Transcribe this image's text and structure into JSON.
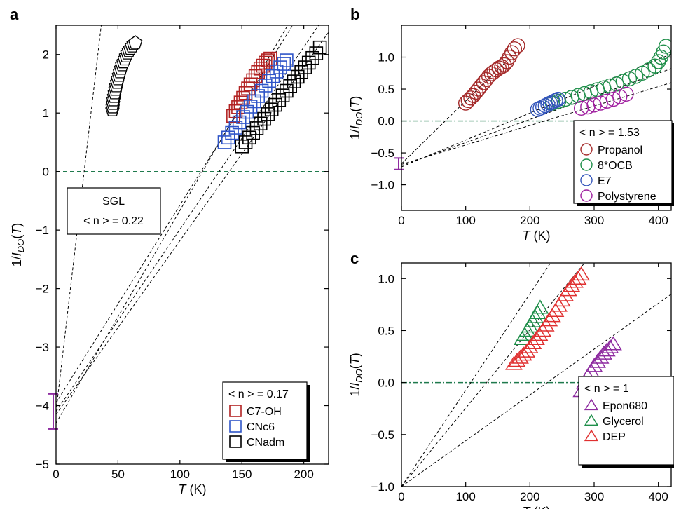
{
  "chart_data": [
    {
      "panel": "a",
      "type": "scatter",
      "xlabel": "T (K)",
      "ylabel": "1/I_DO(T)",
      "xlim": [
        0,
        220
      ],
      "ylim": [
        -5,
        2.5
      ],
      "xticks": [
        "0",
        "50",
        "100",
        "150",
        "200"
      ],
      "yticks": [
        "−5",
        "−4",
        "−3",
        "−2",
        "−1",
        "0",
        "1",
        "2"
      ],
      "grid": false,
      "zero_line": "dashed green at y = 0",
      "legend": {
        "title": "< n > = 0.17",
        "placement": "bottom-right"
      },
      "annotation": {
        "line1": "SGL",
        "line2": "< n > = 0.22"
      },
      "intercept_errorbar": {
        "x": 0,
        "low": -4.4,
        "high": -3.8
      },
      "series": [
        {
          "name": "SGL",
          "marker": "pentagon",
          "color": "#000000",
          "x": [
            45.5,
            45.7,
            46,
            46.4,
            46.9,
            47.4,
            48,
            48.6,
            49.3,
            50,
            50.8,
            51.6,
            52.5,
            53.4,
            54.4,
            55.4,
            56.5,
            57.6,
            58.8,
            60,
            61.3,
            62.6,
            64
          ],
          "y": [
            1.05,
            1.1,
            1.16,
            1.22,
            1.28,
            1.34,
            1.4,
            1.46,
            1.52,
            1.58,
            1.64,
            1.7,
            1.76,
            1.82,
            1.87,
            1.92,
            1.97,
            2.02,
            2.06,
            2.1,
            2.14,
            2.18,
            2.2
          ]
        },
        {
          "name": "C7-OH",
          "marker": "square",
          "color": "#b22222",
          "x": [
            143,
            145,
            147,
            149,
            151,
            153,
            155,
            157,
            159,
            161,
            163,
            165,
            167,
            169,
            171,
            173
          ],
          "y": [
            0.95,
            1.03,
            1.1,
            1.18,
            1.26,
            1.34,
            1.42,
            1.49,
            1.56,
            1.63,
            1.7,
            1.76,
            1.81,
            1.86,
            1.9,
            1.93
          ]
        },
        {
          "name": "CNc6",
          "marker": "square",
          "color": "#2f55c8",
          "x": [
            136,
            139,
            142,
            145,
            148,
            151,
            154,
            157,
            160,
            163,
            166,
            169,
            172,
            175,
            178,
            181,
            184,
            186
          ],
          "y": [
            0.5,
            0.58,
            0.66,
            0.75,
            0.84,
            0.93,
            1.02,
            1.11,
            1.2,
            1.29,
            1.38,
            1.47,
            1.55,
            1.63,
            1.71,
            1.78,
            1.84,
            1.9
          ]
        },
        {
          "name": "CNadm",
          "marker": "square",
          "color": "#000000",
          "x": [
            150,
            153,
            156,
            159,
            162,
            165,
            168,
            171,
            174,
            177,
            180,
            183,
            186,
            189,
            192,
            195,
            198,
            201,
            204,
            207,
            210,
            213
          ],
          "y": [
            0.43,
            0.5,
            0.58,
            0.66,
            0.74,
            0.82,
            0.9,
            0.98,
            1.06,
            1.14,
            1.22,
            1.3,
            1.38,
            1.46,
            1.54,
            1.62,
            1.7,
            1.78,
            1.86,
            1.94,
            2.02,
            2.12
          ]
        }
      ],
      "fit_lines": [
        {
          "x0": 0,
          "y0": -4.1,
          "x1": 36.5,
          "y1": 2.5
        },
        {
          "x0": 0,
          "y0": -4.3,
          "x1": 187,
          "y1": 2.5
        },
        {
          "x0": 0,
          "y0": -3.95,
          "x1": 191,
          "y1": 2.5
        },
        {
          "x0": 0,
          "y0": -4.1,
          "x1": 212,
          "y1": 2.5
        },
        {
          "x0": 0,
          "y0": -4.15,
          "x1": 224,
          "y1": 2.5
        }
      ]
    },
    {
      "panel": "b",
      "type": "scatter",
      "xlabel": "T (K)",
      "ylabel": "1/I_DO(T)",
      "xlim": [
        0,
        420
      ],
      "ylim": [
        -1.4,
        1.5
      ],
      "xticks": [
        "0",
        "100",
        "200",
        "300",
        "400"
      ],
      "yticks": [
        "−1.0",
        "−0.5",
        "0.0",
        "0.5",
        "1.0"
      ],
      "grid": false,
      "zero_line": "dash-dot green at y = 0",
      "legend": {
        "title": "< n > = 1.53",
        "placement": "bottom-right"
      },
      "intercept_errorbar": {
        "x": 0,
        "low": -0.76,
        "high": -0.58
      },
      "series": [
        {
          "name": "Propanol",
          "marker": "circle",
          "color": "#a52a2a",
          "x": [
            100,
            104,
            108,
            112,
            116,
            120,
            124,
            128,
            132,
            136,
            140,
            144,
            148,
            152,
            156,
            160,
            164,
            168,
            172,
            176,
            181
          ],
          "y": [
            0.28,
            0.32,
            0.36,
            0.4,
            0.45,
            0.5,
            0.55,
            0.6,
            0.65,
            0.7,
            0.74,
            0.77,
            0.8,
            0.83,
            0.85,
            0.88,
            0.93,
            1.0,
            1.07,
            1.13,
            1.18
          ]
        },
        {
          "name": "8*OCB",
          "marker": "circle",
          "color": "#1f8f4a",
          "x": [
            235,
            245,
            255,
            265,
            275,
            285,
            295,
            305,
            315,
            325,
            335,
            345,
            355,
            365,
            375,
            385,
            395,
            400,
            404,
            408,
            412
          ],
          "y": [
            0.28,
            0.31,
            0.34,
            0.37,
            0.4,
            0.43,
            0.46,
            0.49,
            0.52,
            0.55,
            0.58,
            0.62,
            0.66,
            0.7,
            0.75,
            0.8,
            0.86,
            0.93,
            1.0,
            1.08,
            1.17
          ]
        },
        {
          "name": "E7",
          "marker": "circle",
          "color": "#3355bb",
          "x": [
            212,
            216,
            220,
            224,
            228,
            232,
            236,
            240,
            244
          ],
          "y": [
            0.18,
            0.2,
            0.22,
            0.24,
            0.26,
            0.28,
            0.3,
            0.32,
            0.34
          ]
        },
        {
          "name": "Polystyrene",
          "marker": "circle",
          "color": "#a020a0",
          "x": [
            280,
            290,
            300,
            310,
            320,
            330,
            340,
            350
          ],
          "y": [
            0.2,
            0.22,
            0.25,
            0.28,
            0.31,
            0.34,
            0.38,
            0.42
          ]
        }
      ],
      "fit_lines": [
        {
          "x0": 0,
          "y0": -0.67,
          "x1": 180,
          "y1": 1.1
        },
        {
          "x0": 0,
          "y0": -0.72,
          "x1": 420,
          "y1": 1.05
        },
        {
          "x0": 0,
          "y0": -0.7,
          "x1": 420,
          "y1": 0.82
        },
        {
          "x0": 0,
          "y0": -0.68,
          "x1": 420,
          "y1": 0.6
        }
      ]
    },
    {
      "panel": "c",
      "type": "scatter",
      "xlabel": "T (K)",
      "ylabel": "1/I_DO(T)",
      "xlim": [
        0,
        420
      ],
      "ylim": [
        -1.0,
        1.15
      ],
      "xticks": [
        "0",
        "100",
        "200",
        "300",
        "400"
      ],
      "yticks": [
        "−1.0",
        "−0.5",
        "0.0",
        "0.5",
        "1.0"
      ],
      "grid": false,
      "zero_line": "dash-dot green at y = 0",
      "legend": {
        "title": "< n > = 1",
        "placement": "bottom-right"
      },
      "series": [
        {
          "name": "Epon680",
          "marker": "triangle",
          "color": "#8e2ca0",
          "x": [
            280,
            285,
            290,
            295,
            300,
            305,
            310,
            315,
            320,
            325,
            330
          ],
          "y": [
            -0.08,
            0.0,
            0.06,
            0.11,
            0.16,
            0.2,
            0.24,
            0.28,
            0.31,
            0.34,
            0.37
          ]
        },
        {
          "name": "Glycerol",
          "marker": "triangle",
          "color": "#1f8f4a",
          "x": [
            188,
            192,
            196,
            200,
            204,
            208,
            212,
            216
          ],
          "y": [
            0.42,
            0.46,
            0.5,
            0.54,
            0.59,
            0.63,
            0.67,
            0.72
          ]
        },
        {
          "name": "DEP",
          "marker": "triangle",
          "color": "#e03030",
          "x": [
            175,
            180,
            185,
            190,
            195,
            200,
            205,
            210,
            215,
            220,
            225,
            230,
            235,
            240,
            245,
            250,
            255,
            260,
            265,
            270,
            275,
            280
          ],
          "y": [
            0.18,
            0.21,
            0.24,
            0.27,
            0.3,
            0.34,
            0.38,
            0.42,
            0.46,
            0.5,
            0.55,
            0.6,
            0.64,
            0.69,
            0.74,
            0.79,
            0.84,
            0.89,
            0.93,
            0.97,
            1.0,
            1.04
          ]
        }
      ],
      "fit_lines": [
        {
          "x0": 0,
          "y0": -1.0,
          "x1": 232,
          "y1": 1.15
        },
        {
          "x0": 0,
          "y0": -1.0,
          "x1": 285,
          "y1": 1.15
        },
        {
          "x0": 0,
          "y0": -1.0,
          "x1": 420,
          "y1": 0.85
        }
      ]
    }
  ]
}
